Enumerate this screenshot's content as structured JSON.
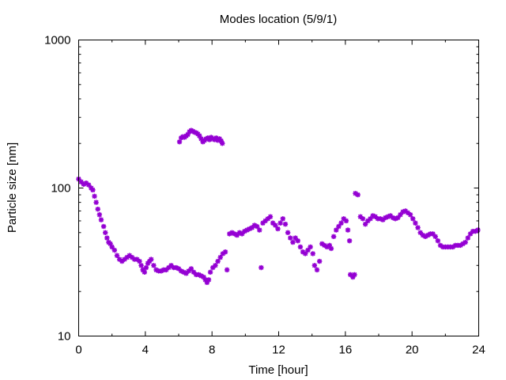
{
  "chart_data": {
    "type": "scatter",
    "title": "Modes location (5/9/1)",
    "xlabel": "Time [hour]",
    "ylabel": "Particle size [nm]",
    "xlim": [
      0,
      24
    ],
    "ylim": [
      10,
      1000
    ],
    "yscale": "log",
    "xticks": [
      0,
      4,
      8,
      12,
      16,
      20,
      24
    ],
    "xtick_labels": [
      "0",
      "4",
      "8",
      "12",
      "16",
      "20",
      "24"
    ],
    "yticks": [
      10,
      100,
      1000
    ],
    "ytick_labels": [
      "10",
      "100",
      "1000"
    ],
    "grid": false,
    "legend": "none",
    "marker_color": "#9400d3",
    "series": [
      {
        "values": [
          [
            0.0,
            115
          ],
          [
            0.15,
            110
          ],
          [
            0.3,
            106
          ],
          [
            0.45,
            108
          ],
          [
            0.6,
            105
          ],
          [
            0.75,
            100
          ],
          [
            0.85,
            97
          ],
          [
            0.95,
            88
          ],
          [
            1.05,
            80
          ],
          [
            1.15,
            72
          ],
          [
            1.25,
            66
          ],
          [
            1.35,
            61
          ],
          [
            1.5,
            55
          ],
          [
            1.6,
            50
          ],
          [
            1.7,
            46
          ],
          [
            1.8,
            43
          ],
          [
            1.9,
            42
          ],
          [
            2.0,
            40
          ],
          [
            2.15,
            38
          ],
          [
            2.3,
            35
          ],
          [
            2.45,
            33
          ],
          [
            2.6,
            32
          ],
          [
            2.75,
            33
          ],
          [
            2.9,
            34
          ],
          [
            3.05,
            35
          ],
          [
            3.2,
            34
          ],
          [
            3.35,
            33
          ],
          [
            3.5,
            33
          ],
          [
            3.65,
            32
          ],
          [
            3.75,
            30
          ],
          [
            3.85,
            28
          ],
          [
            3.95,
            27
          ],
          [
            4.05,
            29
          ],
          [
            4.15,
            31
          ],
          [
            4.25,
            32
          ],
          [
            4.35,
            33
          ],
          [
            4.5,
            30
          ],
          [
            4.65,
            28
          ],
          [
            4.8,
            27.5
          ],
          [
            4.95,
            27.5
          ],
          [
            5.1,
            28
          ],
          [
            5.25,
            28
          ],
          [
            5.4,
            29
          ],
          [
            5.55,
            30
          ],
          [
            5.7,
            29
          ],
          [
            5.85,
            29
          ],
          [
            6.0,
            28.5
          ],
          [
            6.15,
            27.5
          ],
          [
            6.3,
            27
          ],
          [
            6.45,
            26.5
          ],
          [
            6.6,
            27.5
          ],
          [
            6.75,
            28.5
          ],
          [
            6.9,
            27
          ],
          [
            7.05,
            26
          ],
          [
            7.2,
            26
          ],
          [
            7.35,
            25.5
          ],
          [
            7.5,
            25
          ],
          [
            7.6,
            24
          ],
          [
            7.7,
            23
          ],
          [
            7.8,
            24
          ],
          [
            7.9,
            27
          ],
          [
            8.05,
            29
          ],
          [
            8.2,
            30
          ],
          [
            8.35,
            32
          ],
          [
            8.5,
            34
          ],
          [
            8.65,
            36
          ],
          [
            8.8,
            37
          ],
          [
            8.9,
            28
          ],
          [
            9.05,
            49
          ],
          [
            9.2,
            50
          ],
          [
            9.35,
            49
          ],
          [
            9.5,
            48
          ],
          [
            9.65,
            50
          ],
          [
            9.8,
            49
          ],
          [
            9.95,
            51
          ],
          [
            10.1,
            52
          ],
          [
            10.25,
            53
          ],
          [
            10.4,
            54
          ],
          [
            10.55,
            56
          ],
          [
            10.7,
            55
          ],
          [
            10.85,
            52
          ],
          [
            10.95,
            29
          ],
          [
            11.05,
            58
          ],
          [
            11.2,
            60
          ],
          [
            11.35,
            62
          ],
          [
            11.5,
            64
          ],
          [
            11.65,
            58
          ],
          [
            11.8,
            56
          ],
          [
            11.95,
            53
          ],
          [
            12.1,
            58
          ],
          [
            12.25,
            62
          ],
          [
            12.4,
            57
          ],
          [
            12.55,
            50
          ],
          [
            12.7,
            46
          ],
          [
            12.85,
            43
          ],
          [
            13.0,
            46
          ],
          [
            13.15,
            44
          ],
          [
            13.3,
            40
          ],
          [
            13.45,
            37
          ],
          [
            13.6,
            36
          ],
          [
            13.75,
            38
          ],
          [
            13.9,
            40
          ],
          [
            14.05,
            36
          ],
          [
            14.15,
            30
          ],
          [
            14.3,
            28
          ],
          [
            14.45,
            32
          ],
          [
            14.6,
            42
          ],
          [
            14.75,
            41
          ],
          [
            14.9,
            40
          ],
          [
            15.05,
            41
          ],
          [
            15.15,
            39
          ],
          [
            15.3,
            47
          ],
          [
            15.45,
            52
          ],
          [
            15.6,
            55
          ],
          [
            15.75,
            58
          ],
          [
            15.9,
            62
          ],
          [
            16.05,
            60
          ],
          [
            16.15,
            52
          ],
          [
            16.25,
            44
          ],
          [
            16.3,
            26
          ],
          [
            16.45,
            25
          ],
          [
            16.55,
            26
          ],
          [
            16.6,
            92
          ],
          [
            16.75,
            90
          ],
          [
            16.9,
            64
          ],
          [
            17.05,
            62
          ],
          [
            17.2,
            57
          ],
          [
            17.35,
            60
          ],
          [
            17.5,
            62
          ],
          [
            17.65,
            65
          ],
          [
            17.8,
            64
          ],
          [
            17.95,
            62
          ],
          [
            18.1,
            62
          ],
          [
            18.25,
            61
          ],
          [
            18.4,
            63
          ],
          [
            18.55,
            64
          ],
          [
            18.7,
            65
          ],
          [
            18.85,
            63
          ],
          [
            19.0,
            62
          ],
          [
            19.15,
            63
          ],
          [
            19.3,
            66
          ],
          [
            19.45,
            69
          ],
          [
            19.6,
            70
          ],
          [
            19.75,
            68
          ],
          [
            19.9,
            66
          ],
          [
            20.05,
            62
          ],
          [
            20.2,
            58
          ],
          [
            20.35,
            54
          ],
          [
            20.5,
            50
          ],
          [
            20.65,
            48
          ],
          [
            20.8,
            47
          ],
          [
            20.95,
            48
          ],
          [
            21.1,
            49
          ],
          [
            21.25,
            49
          ],
          [
            21.4,
            47
          ],
          [
            21.55,
            44
          ],
          [
            21.7,
            41
          ],
          [
            21.85,
            40
          ],
          [
            22.0,
            40
          ],
          [
            22.15,
            40
          ],
          [
            22.3,
            40
          ],
          [
            22.45,
            40
          ],
          [
            22.6,
            41
          ],
          [
            22.75,
            41
          ],
          [
            22.9,
            41
          ],
          [
            23.05,
            42
          ],
          [
            23.2,
            43
          ],
          [
            23.35,
            46
          ],
          [
            23.5,
            49
          ],
          [
            23.65,
            51
          ],
          [
            23.8,
            51
          ],
          [
            23.95,
            52
          ]
        ]
      },
      {
        "values": [
          [
            6.05,
            205
          ],
          [
            6.15,
            218
          ],
          [
            6.25,
            222
          ],
          [
            6.35,
            220
          ],
          [
            6.45,
            225
          ],
          [
            6.55,
            230
          ],
          [
            6.65,
            240
          ],
          [
            6.75,
            245
          ],
          [
            6.85,
            242
          ],
          [
            6.95,
            238
          ],
          [
            7.05,
            236
          ],
          [
            7.15,
            232
          ],
          [
            7.25,
            225
          ],
          [
            7.35,
            215
          ],
          [
            7.45,
            205
          ],
          [
            7.55,
            210
          ],
          [
            7.65,
            215
          ],
          [
            7.75,
            218
          ],
          [
            7.85,
            212
          ],
          [
            7.95,
            220
          ],
          [
            8.05,
            215
          ],
          [
            8.15,
            212
          ],
          [
            8.25,
            218
          ],
          [
            8.35,
            210
          ],
          [
            8.45,
            215
          ],
          [
            8.55,
            208
          ],
          [
            8.62,
            200
          ]
        ]
      }
    ]
  }
}
